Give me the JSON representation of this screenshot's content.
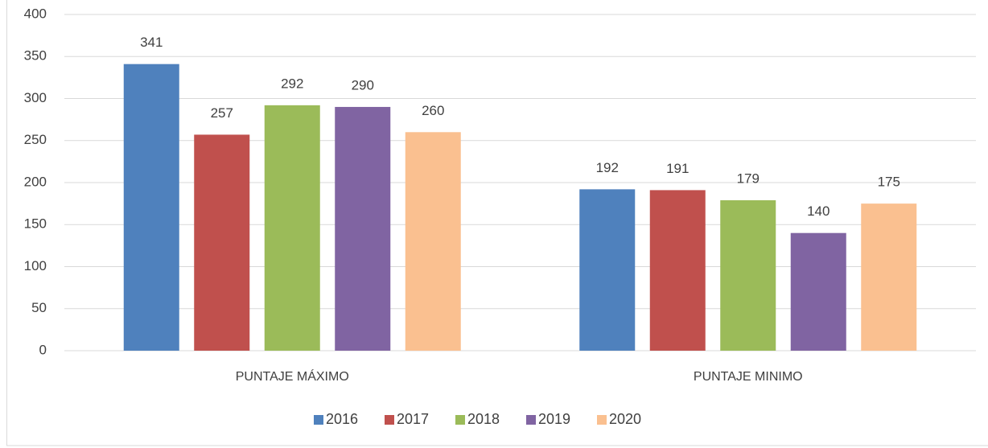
{
  "chart_data": {
    "type": "bar",
    "categories": [
      "PUNTAJE MÁXIMO",
      "PUNTAJE MINIMO"
    ],
    "series": [
      {
        "name": "2016",
        "color": "#4f81bd",
        "values": [
          341,
          192
        ]
      },
      {
        "name": "2017",
        "color": "#c0504d",
        "values": [
          257,
          191
        ]
      },
      {
        "name": "2018",
        "color": "#9bbb59",
        "values": [
          292,
          179
        ]
      },
      {
        "name": "2019",
        "color": "#8064a2",
        "values": [
          290,
          140
        ]
      },
      {
        "name": "2020",
        "color": "#fac090",
        "values": [
          260,
          175
        ]
      }
    ],
    "ylim": [
      0,
      400
    ],
    "yticks": [
      0,
      50,
      100,
      150,
      200,
      250,
      300,
      350,
      400
    ],
    "grid": true,
    "legend": "bottom"
  }
}
